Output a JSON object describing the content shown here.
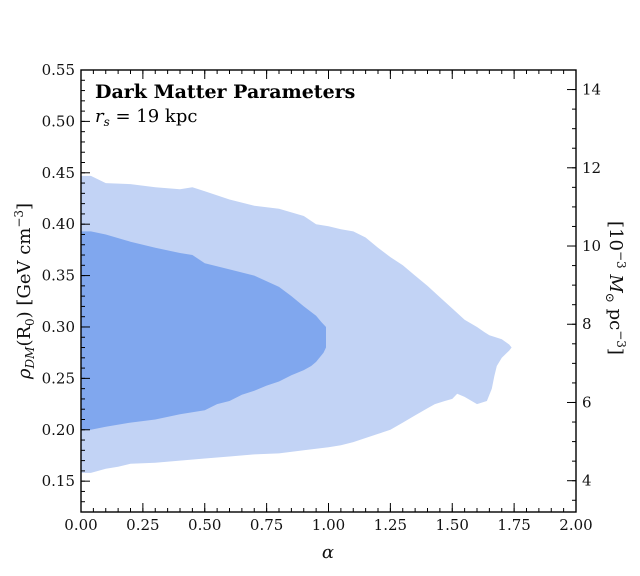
{
  "chart_data": {
    "type": "contour",
    "title": "Dark Matter Parameters",
    "subtitle": "r_s = 19 kpc",
    "subtitle_parts": {
      "sym": "r",
      "sub": "s",
      "rest": " = 19 kpc"
    },
    "xlabel": "α",
    "ylabel": {
      "rho": "ρ",
      "sub": "DM",
      "mid": "(R",
      "sub2": "0",
      "rest": ") [GeV cm",
      "sup": "−3",
      "end": "]"
    },
    "y2label": {
      "pre": "[10",
      "sup": "−3",
      "sym": " M",
      "sub": "⊙",
      "rest": " pc",
      "sup2": "−3",
      "end": "]"
    },
    "xlim": [
      0.0,
      2.0
    ],
    "ylim": [
      0.12,
      0.55
    ],
    "y2lim": [
      3.2,
      14.5
    ],
    "x_ticks": [
      "0.00",
      "0.25",
      "0.50",
      "0.75",
      "1.00",
      "1.25",
      "1.50",
      "1.75",
      "2.00"
    ],
    "y_ticks": [
      "0.15",
      "0.20",
      "0.25",
      "0.30",
      "0.35",
      "0.40",
      "0.45",
      "0.50",
      "0.55"
    ],
    "y2_ticks": [
      "4",
      "6",
      "8",
      "10",
      "12",
      "14"
    ],
    "colors": {
      "outer": "#c2d3f5",
      "inner": "#80a7ee",
      "axis": "#000000"
    },
    "regions": [
      {
        "level": "outer",
        "points": [
          [
            0.0,
            0.447
          ],
          [
            0.04,
            0.447
          ],
          [
            0.1,
            0.44
          ],
          [
            0.2,
            0.439
          ],
          [
            0.3,
            0.436
          ],
          [
            0.4,
            0.434
          ],
          [
            0.45,
            0.436
          ],
          [
            0.5,
            0.432
          ],
          [
            0.6,
            0.424
          ],
          [
            0.7,
            0.418
          ],
          [
            0.8,
            0.415
          ],
          [
            0.9,
            0.408
          ],
          [
            0.95,
            0.4
          ],
          [
            1.0,
            0.398
          ],
          [
            1.05,
            0.395
          ],
          [
            1.1,
            0.393
          ],
          [
            1.15,
            0.387
          ],
          [
            1.2,
            0.377
          ],
          [
            1.25,
            0.368
          ],
          [
            1.3,
            0.36
          ],
          [
            1.35,
            0.35
          ],
          [
            1.4,
            0.34
          ],
          [
            1.45,
            0.329
          ],
          [
            1.5,
            0.318
          ],
          [
            1.55,
            0.307
          ],
          [
            1.6,
            0.3
          ],
          [
            1.63,
            0.295
          ],
          [
            1.65,
            0.292
          ],
          [
            1.7,
            0.288
          ],
          [
            1.73,
            0.283
          ],
          [
            1.74,
            0.28
          ],
          [
            1.73,
            0.277
          ],
          [
            1.7,
            0.27
          ],
          [
            1.68,
            0.262
          ],
          [
            1.67,
            0.252
          ],
          [
            1.66,
            0.24
          ],
          [
            1.64,
            0.228
          ],
          [
            1.6,
            0.225
          ],
          [
            1.55,
            0.232
          ],
          [
            1.52,
            0.235
          ],
          [
            1.5,
            0.23
          ],
          [
            1.47,
            0.228
          ],
          [
            1.43,
            0.225
          ],
          [
            1.4,
            0.221
          ],
          [
            1.35,
            0.214
          ],
          [
            1.3,
            0.207
          ],
          [
            1.25,
            0.2
          ],
          [
            1.2,
            0.196
          ],
          [
            1.15,
            0.192
          ],
          [
            1.1,
            0.188
          ],
          [
            1.05,
            0.185
          ],
          [
            1.0,
            0.183
          ],
          [
            0.9,
            0.18
          ],
          [
            0.8,
            0.177
          ],
          [
            0.7,
            0.176
          ],
          [
            0.6,
            0.174
          ],
          [
            0.5,
            0.172
          ],
          [
            0.4,
            0.17
          ],
          [
            0.3,
            0.168
          ],
          [
            0.2,
            0.167
          ],
          [
            0.15,
            0.164
          ],
          [
            0.1,
            0.162
          ],
          [
            0.04,
            0.158
          ],
          [
            0.0,
            0.158
          ]
        ]
      },
      {
        "level": "inner",
        "points": [
          [
            0.0,
            0.393
          ],
          [
            0.04,
            0.393
          ],
          [
            0.1,
            0.39
          ],
          [
            0.2,
            0.383
          ],
          [
            0.3,
            0.377
          ],
          [
            0.4,
            0.372
          ],
          [
            0.45,
            0.37
          ],
          [
            0.5,
            0.362
          ],
          [
            0.6,
            0.356
          ],
          [
            0.7,
            0.35
          ],
          [
            0.8,
            0.339
          ],
          [
            0.85,
            0.33
          ],
          [
            0.9,
            0.32
          ],
          [
            0.95,
            0.311
          ],
          [
            0.97,
            0.305
          ],
          [
            0.99,
            0.3
          ],
          [
            0.99,
            0.29
          ],
          [
            0.99,
            0.28
          ],
          [
            0.98,
            0.275
          ],
          [
            0.95,
            0.266
          ],
          [
            0.93,
            0.262
          ],
          [
            0.9,
            0.258
          ],
          [
            0.85,
            0.253
          ],
          [
            0.8,
            0.247
          ],
          [
            0.75,
            0.243
          ],
          [
            0.7,
            0.238
          ],
          [
            0.65,
            0.234
          ],
          [
            0.6,
            0.228
          ],
          [
            0.55,
            0.225
          ],
          [
            0.5,
            0.219
          ],
          [
            0.4,
            0.215
          ],
          [
            0.3,
            0.21
          ],
          [
            0.2,
            0.207
          ],
          [
            0.1,
            0.203
          ],
          [
            0.04,
            0.2
          ],
          [
            0.0,
            0.2
          ]
        ]
      }
    ]
  }
}
